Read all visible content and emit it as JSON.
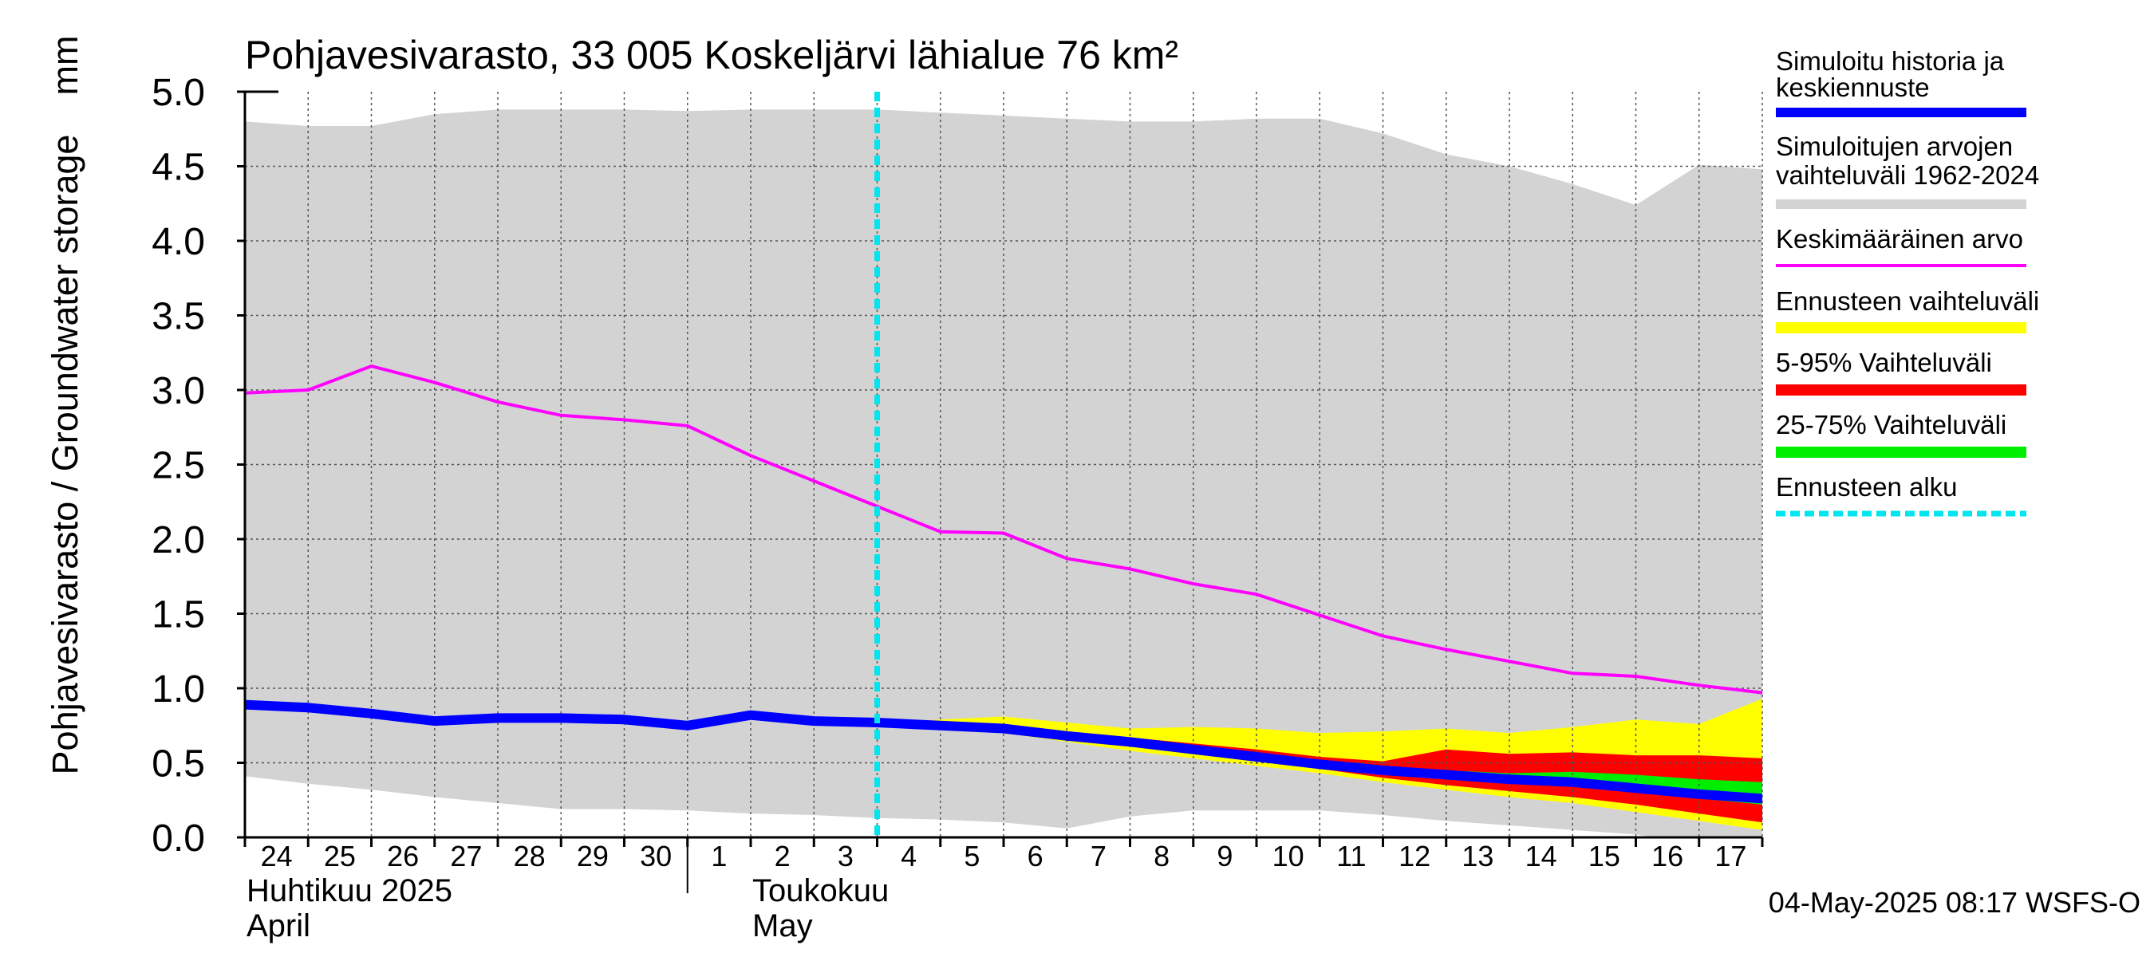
{
  "chart_data": {
    "type": "area",
    "title": "Pohjavesivarasto, 33 005 Koskeljärvi lähialue 76 km²",
    "ylabel": "Pohjavesivarasto / Groundwater storage",
    "yunit": "mm",
    "ylim": [
      0,
      5
    ],
    "yticks": [
      "0.0",
      "0.5",
      "1.0",
      "1.5",
      "2.0",
      "2.5",
      "3.0",
      "3.5",
      "4.0",
      "4.5",
      "5.0"
    ],
    "x_start": "2025-04-24",
    "x_end": "2025-05-18",
    "xticks": [
      "24",
      "25",
      "26",
      "27",
      "28",
      "29",
      "30",
      "1",
      "2",
      "3",
      "4",
      "5",
      "6",
      "7",
      "8",
      "9",
      "10",
      "11",
      "12",
      "13",
      "14",
      "15",
      "16",
      "17"
    ],
    "month_labels": [
      {
        "line1": "Huhtikuu  2025",
        "line2": "April",
        "date": "2025-04-24"
      },
      {
        "line1": "Toukokuu",
        "line2": "May",
        "date": "2025-05-02"
      }
    ],
    "month_divider": "2025-05-01",
    "forecast_start": "2025-05-04",
    "grid": true,
    "legend_position": "right",
    "legend": [
      {
        "label": "Simuloitu historia ja keskiennuste",
        "color": "#0000ff"
      },
      {
        "label": "Simuloitujen arvojen vaihteluväli 1962-2024",
        "color": "#d3d3d3"
      },
      {
        "label": "Keskimääräinen arvo",
        "color": "#ff00ff"
      },
      {
        "label": "Ennusteen vaihteluväli",
        "color": "#ffff00"
      },
      {
        "label": "5-95% Vaihteluväli",
        "color": "#ff0000"
      },
      {
        "label": "25-75% Vaihteluväli",
        "color": "#00ee00"
      },
      {
        "label": "Ennusteen alku",
        "color": "#00e5ee"
      }
    ],
    "colors": {
      "history_range": "#d3d3d3",
      "mean": "#ff00ff",
      "forecast_range": "#ffff00",
      "p5_95": "#ff0000",
      "p25_75": "#00ee00",
      "median": "#0000ff",
      "forecast_start": "#00e5ee"
    },
    "series": {
      "history_range": {
        "x": [
          "2025-04-24",
          "2025-04-25",
          "2025-04-26",
          "2025-04-27",
          "2025-04-28",
          "2025-04-29",
          "2025-04-30",
          "2025-05-01",
          "2025-05-02",
          "2025-05-03",
          "2025-05-04",
          "2025-05-05",
          "2025-05-06",
          "2025-05-07",
          "2025-05-08",
          "2025-05-09",
          "2025-05-10",
          "2025-05-11",
          "2025-05-12",
          "2025-05-13",
          "2025-05-14",
          "2025-05-15",
          "2025-05-16",
          "2025-05-17",
          "2025-05-18"
        ],
        "upper": [
          4.8,
          4.77,
          4.77,
          4.85,
          4.88,
          4.88,
          4.88,
          4.87,
          4.88,
          4.88,
          4.88,
          4.86,
          4.84,
          4.82,
          4.8,
          4.8,
          4.82,
          4.82,
          4.72,
          4.58,
          4.5,
          4.38,
          4.24,
          4.51,
          4.48
        ],
        "lower": [
          0.41,
          0.36,
          0.32,
          0.27,
          0.23,
          0.19,
          0.19,
          0.18,
          0.16,
          0.15,
          0.13,
          0.12,
          0.1,
          0.06,
          0.14,
          0.18,
          0.18,
          0.18,
          0.15,
          0.11,
          0.08,
          0.05,
          0.02,
          -0.05,
          -0.05
        ]
      },
      "mean": {
        "x": [
          "2025-04-24",
          "2025-04-25",
          "2025-04-26",
          "2025-04-27",
          "2025-04-28",
          "2025-04-29",
          "2025-04-30",
          "2025-05-01",
          "2025-05-02",
          "2025-05-03",
          "2025-05-04",
          "2025-05-05",
          "2025-05-06",
          "2025-05-07",
          "2025-05-08",
          "2025-05-09",
          "2025-05-10",
          "2025-05-11",
          "2025-05-12",
          "2025-05-13",
          "2025-05-14",
          "2025-05-15",
          "2025-05-16",
          "2025-05-17",
          "2025-05-18"
        ],
        "values": [
          2.98,
          3.0,
          3.16,
          3.05,
          2.92,
          2.83,
          2.8,
          2.76,
          2.56,
          2.39,
          2.22,
          2.05,
          2.04,
          1.87,
          1.8,
          1.7,
          1.63,
          1.49,
          1.35,
          1.26,
          1.18,
          1.1,
          1.08,
          1.02,
          0.97
        ]
      },
      "median": {
        "x": [
          "2025-04-24",
          "2025-04-25",
          "2025-04-26",
          "2025-04-27",
          "2025-04-28",
          "2025-04-29",
          "2025-04-30",
          "2025-05-01",
          "2025-05-02",
          "2025-05-03",
          "2025-05-04",
          "2025-05-05",
          "2025-05-06",
          "2025-05-07",
          "2025-05-08",
          "2025-05-09",
          "2025-05-10",
          "2025-05-11",
          "2025-05-12",
          "2025-05-13",
          "2025-05-14",
          "2025-05-15",
          "2025-05-16",
          "2025-05-17",
          "2025-05-18"
        ],
        "values": [
          0.89,
          0.87,
          0.83,
          0.78,
          0.8,
          0.8,
          0.79,
          0.75,
          0.82,
          0.78,
          0.77,
          0.75,
          0.73,
          0.68,
          0.64,
          0.59,
          0.54,
          0.49,
          0.45,
          0.42,
          0.39,
          0.37,
          0.33,
          0.29,
          0.26
        ]
      },
      "forecast_range": {
        "x": [
          "2025-05-04",
          "2025-05-05",
          "2025-05-06",
          "2025-05-07",
          "2025-05-08",
          "2025-05-09",
          "2025-05-10",
          "2025-05-11",
          "2025-05-12",
          "2025-05-13",
          "2025-05-14",
          "2025-05-15",
          "2025-05-16",
          "2025-05-17",
          "2025-05-18"
        ],
        "upper": [
          0.77,
          0.79,
          0.81,
          0.77,
          0.73,
          0.74,
          0.73,
          0.7,
          0.71,
          0.73,
          0.7,
          0.74,
          0.79,
          0.76,
          0.93
        ],
        "lower": [
          0.77,
          0.74,
          0.7,
          0.64,
          0.58,
          0.53,
          0.48,
          0.43,
          0.37,
          0.32,
          0.27,
          0.23,
          0.17,
          0.11,
          0.05
        ]
      },
      "p5_95": {
        "x": [
          "2025-05-04",
          "2025-05-05",
          "2025-05-06",
          "2025-05-07",
          "2025-05-08",
          "2025-05-09",
          "2025-05-10",
          "2025-05-11",
          "2025-05-12",
          "2025-05-13",
          "2025-05-14",
          "2025-05-15",
          "2025-05-16",
          "2025-05-17",
          "2025-05-18"
        ],
        "upper": [
          0.77,
          0.76,
          0.75,
          0.71,
          0.67,
          0.63,
          0.59,
          0.54,
          0.51,
          0.59,
          0.56,
          0.57,
          0.55,
          0.55,
          0.53
        ],
        "lower": [
          0.77,
          0.74,
          0.71,
          0.66,
          0.61,
          0.56,
          0.51,
          0.46,
          0.4,
          0.35,
          0.31,
          0.27,
          0.22,
          0.16,
          0.1
        ]
      },
      "p25_75": {
        "x": [
          "2025-05-04",
          "2025-05-05",
          "2025-05-06",
          "2025-05-07",
          "2025-05-08",
          "2025-05-09",
          "2025-05-10",
          "2025-05-11",
          "2025-05-12",
          "2025-05-13",
          "2025-05-14",
          "2025-05-15",
          "2025-05-16",
          "2025-05-17",
          "2025-05-18"
        ],
        "upper": [
          0.77,
          0.75,
          0.73,
          0.69,
          0.65,
          0.61,
          0.56,
          0.51,
          0.47,
          0.45,
          0.43,
          0.44,
          0.42,
          0.39,
          0.37
        ],
        "lower": [
          0.77,
          0.75,
          0.72,
          0.67,
          0.63,
          0.58,
          0.53,
          0.48,
          0.44,
          0.4,
          0.37,
          0.35,
          0.3,
          0.26,
          0.22
        ]
      }
    }
  },
  "footer": {
    "timestamp": "04-May-2025 08:17 WSFS-O"
  }
}
